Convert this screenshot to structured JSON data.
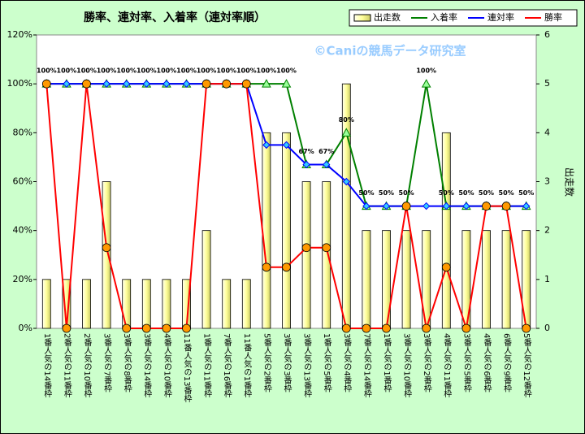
{
  "chart_data": {
    "type": "combo",
    "title": "勝率、連対率、入着率（連対率順）",
    "watermark": "©Caniの競馬データ研究室",
    "y2label": "出走数",
    "categories": [
      "1番人気の14番枠",
      "2番人気の11番枠",
      "2番人気の10番枠",
      "3番人気の7番枠",
      "3番人気の8番枠",
      "3番人気の14番枠",
      "4番人気の10番枠",
      "11番人気の13番枠",
      "1番人気の11番枠",
      "7番人気の16番枠",
      "11番人気の1番枠",
      "5番人気の2番枠",
      "3番人気の3番枠",
      "3番人気の13番枠",
      "1番人気の5番枠",
      "3番人気の4番枠",
      "7番人気の14番枠",
      "1番人気の1番枠",
      "3番人気の10番枠",
      "3番人気の2番枠",
      "4番人気の11番枠",
      "3番人気の5番枠",
      "4番人気の6番枠",
      "6番人気の9番枠",
      "5番人気の12番枠"
    ],
    "series": [
      {
        "name": "出走数",
        "type": "bar",
        "axis": "y2",
        "color": "#ffff99",
        "values": [
          1,
          1,
          1,
          3,
          1,
          1,
          1,
          1,
          2,
          1,
          1,
          4,
          4,
          3,
          3,
          5,
          2,
          2,
          2,
          2,
          4,
          2,
          2,
          2,
          2
        ]
      },
      {
        "name": "入着率",
        "type": "line",
        "marker": "triangle",
        "color": "#008000",
        "values": [
          100,
          100,
          100,
          100,
          100,
          100,
          100,
          100,
          100,
          100,
          100,
          100,
          100,
          67,
          67,
          80,
          50,
          50,
          50,
          100,
          50,
          50,
          50,
          50,
          50
        ],
        "value_labels": [
          "100%",
          "100%",
          "100%",
          "100%",
          "100%",
          "100%",
          "100%",
          "100%",
          "100%",
          "100%",
          "100%",
          "100%",
          "100%",
          "67%",
          "67%",
          "80%",
          "50%",
          "50%",
          "50%",
          "100%",
          "50%",
          "50%",
          "50%",
          "50%",
          "50%"
        ]
      },
      {
        "name": "連対率",
        "type": "line",
        "marker": "diamond",
        "color": "#0000ff",
        "values": [
          100,
          100,
          100,
          100,
          100,
          100,
          100,
          100,
          100,
          100,
          100,
          75,
          75,
          67,
          67,
          60,
          50,
          50,
          50,
          50,
          50,
          50,
          50,
          50,
          50
        ]
      },
      {
        "name": "勝率",
        "type": "line",
        "marker": "circle",
        "color": "#ff0000",
        "values": [
          100,
          0,
          100,
          33,
          0,
          0,
          0,
          0,
          100,
          100,
          100,
          25,
          25,
          33,
          33,
          0,
          0,
          0,
          50,
          0,
          25,
          0,
          50,
          50,
          0
        ]
      }
    ],
    "ylim": [
      0,
      120
    ],
    "yticks": [
      {
        "value": 0,
        "label": "0%"
      },
      {
        "value": 20,
        "label": "20%"
      },
      {
        "value": 40,
        "label": "40%"
      },
      {
        "value": 60,
        "label": "60%"
      },
      {
        "value": 80,
        "label": "80%"
      },
      {
        "value": 100,
        "label": "100%"
      },
      {
        "value": 120,
        "label": "120%"
      }
    ],
    "y2lim": [
      0,
      6
    ],
    "y2ticks": [
      0,
      1,
      2,
      3,
      4,
      5,
      6
    ]
  }
}
